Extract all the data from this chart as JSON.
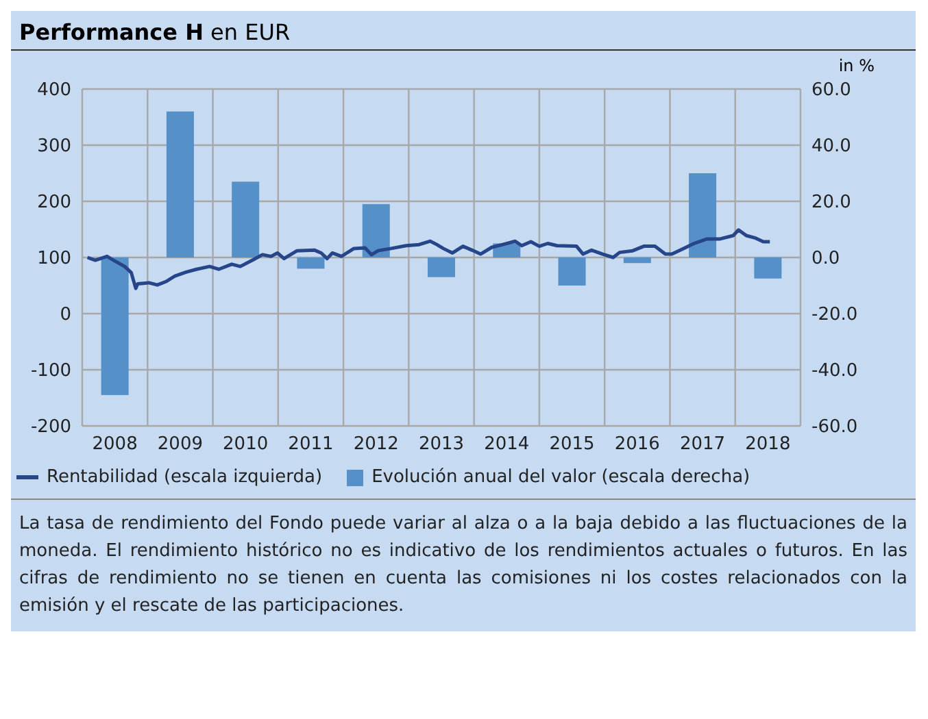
{
  "chart_data": {
    "type": "bar",
    "title": "Performance H",
    "subtitle": "en EUR",
    "y2label": "in %",
    "x": [
      2008.5,
      2009.5,
      2010.5,
      2011.5,
      2012.5,
      2013.5,
      2014.5,
      2015.5,
      2016.5,
      2017.5,
      2018.5
    ],
    "xlim": [
      2008,
      2019
    ],
    "xticks": [
      {
        "value": 2008,
        "label": null
      },
      {
        "value": 2008.5,
        "label": "2008"
      },
      {
        "value": 2009,
        "label": null
      },
      {
        "value": 2009.5,
        "label": "2009"
      },
      {
        "value": 2010,
        "label": null
      },
      {
        "value": 2010.5,
        "label": "2010"
      },
      {
        "value": 2011,
        "label": null
      },
      {
        "value": 2011.5,
        "label": "2011"
      },
      {
        "value": 2012,
        "label": null
      },
      {
        "value": 2012.5,
        "label": "2012"
      },
      {
        "value": 2013,
        "label": null
      },
      {
        "value": 2013.5,
        "label": "2013"
      },
      {
        "value": 2014,
        "label": null
      },
      {
        "value": 2014.5,
        "label": "2014"
      },
      {
        "value": 2015,
        "label": null
      },
      {
        "value": 2015.5,
        "label": "2015"
      },
      {
        "value": 2016,
        "label": null
      },
      {
        "value": 2016.5,
        "label": "2016"
      },
      {
        "value": 2017,
        "label": null
      },
      {
        "value": 2017.5,
        "label": "2017"
      },
      {
        "value": 2018,
        "label": null
      },
      {
        "value": 2018.5,
        "label": "2018"
      },
      {
        "value": 2019,
        "label": null
      }
    ],
    "series": [
      {
        "name": "Rentabilidad (escala izquierda)",
        "type": "line",
        "color": "#27468a",
        "x": [
          2008.08,
          2008.2,
          2008.38,
          2008.48,
          2008.65,
          2008.75,
          2008.82,
          2008.85,
          2009.02,
          2009.15,
          2009.28,
          2009.42,
          2009.59,
          2009.75,
          2009.95,
          2010.09,
          2010.29,
          2010.42,
          2010.62,
          2010.76,
          2010.89,
          2010.99,
          2011.09,
          2011.29,
          2011.56,
          2011.66,
          2011.75,
          2011.83,
          2011.97,
          2012.16,
          2012.33,
          2012.43,
          2012.53,
          2012.73,
          2012.96,
          2013.16,
          2013.33,
          2013.43,
          2013.53,
          2013.67,
          2013.83,
          2013.97,
          2014.1,
          2014.27,
          2014.47,
          2014.63,
          2014.73,
          2014.87,
          2015.0,
          2015.13,
          2015.27,
          2015.57,
          2015.67,
          2015.8,
          2015.97,
          2016.13,
          2016.23,
          2016.43,
          2016.6,
          2016.77,
          2016.93,
          2017.03,
          2017.23,
          2017.37,
          2017.57,
          2017.77,
          2017.97,
          2018.05,
          2018.17,
          2018.3,
          2018.43,
          2018.53
        ],
        "values": [
          100,
          95,
          102,
          95,
          84,
          73,
          45,
          53,
          55,
          51,
          57,
          67,
          74,
          79,
          84,
          79,
          88,
          84,
          96,
          105,
          102,
          108,
          98,
          112,
          113,
          108,
          98,
          108,
          102,
          116,
          117,
          105,
          112,
          116,
          121,
          123,
          129,
          123,
          116,
          108,
          120,
          113,
          106,
          118,
          124,
          129,
          121,
          128,
          120,
          125,
          121,
          120,
          106,
          113,
          106,
          100,
          109,
          112,
          120,
          120,
          106,
          106,
          117,
          125,
          133,
          133,
          139,
          149,
          139,
          135,
          128,
          128
        ]
      },
      {
        "name": "Evolución anual del valor (escala derecha)",
        "axis": "y2",
        "color": "#5590c8",
        "values": [
          -49,
          52,
          27,
          -4,
          19,
          -7,
          5,
          -10,
          -2,
          30,
          -7.5
        ]
      }
    ],
    "ylim": [
      -200,
      400
    ],
    "yticks": [
      -200,
      -100,
      0,
      100,
      200,
      300,
      400
    ],
    "y2lim": [
      -60,
      60
    ],
    "y2ticks": [
      {
        "value": -60,
        "label": "-60.0"
      },
      {
        "value": -40,
        "label": "-40.0"
      },
      {
        "value": -20,
        "label": "-20.0"
      },
      {
        "value": 0,
        "label": "0.0"
      },
      {
        "value": 20,
        "label": "20.0"
      },
      {
        "value": 40,
        "label": "40.0"
      },
      {
        "value": 60,
        "label": "60.0"
      }
    ],
    "grid": true,
    "legend": "bottom",
    "annotations": [
      "La tasa de rendimiento del Fondo puede variar al alza o a la baja debido a las fluctuaciones de la moneda. El rendimiento histórico no es indicativo de los rendimientos actuales o futuros. En las cifras de rendimiento no se tienen en cuenta las comisiones ni los costes relacionados con la emisión y el rescate de las participaciones."
    ]
  }
}
